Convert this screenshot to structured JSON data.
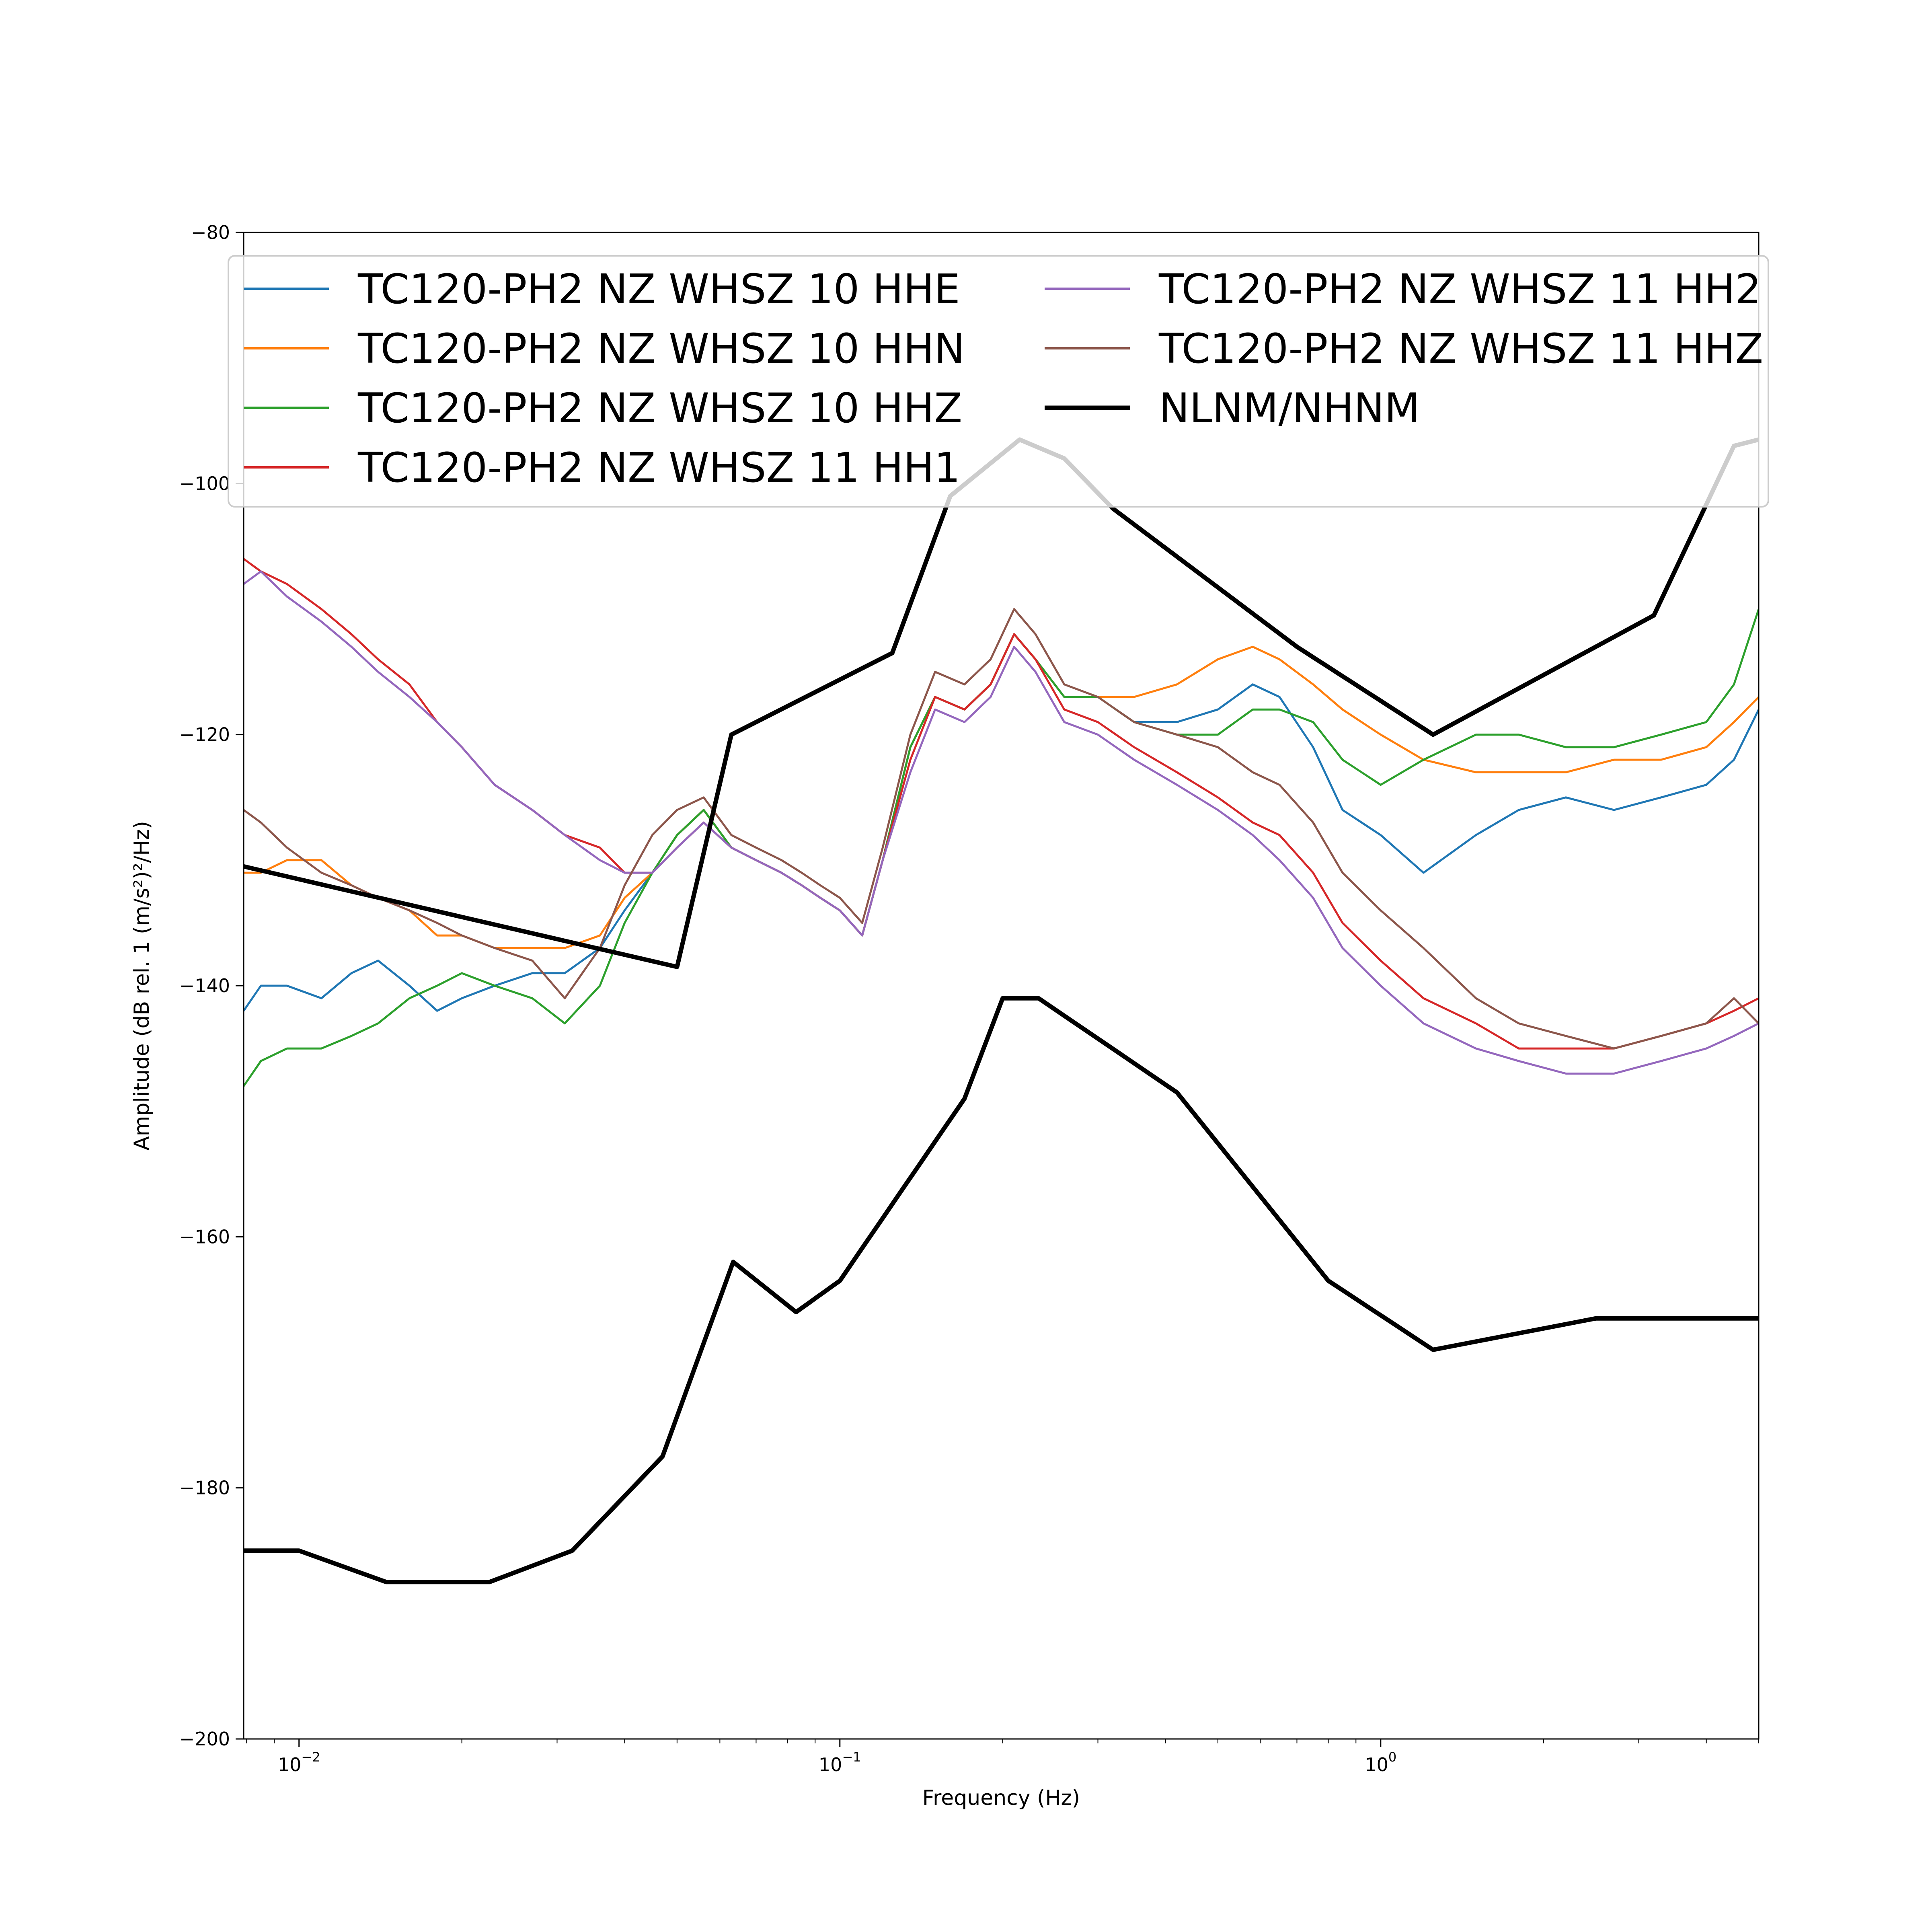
{
  "chart_data": {
    "type": "line",
    "xlabel": "Frequency (Hz)",
    "ylabel": "Amplitude (dB rel. 1 (m/s²)²/Hz)",
    "x_scale": "log",
    "xlim": [
      0.0079,
      5.0
    ],
    "ylim": [
      -200,
      -80
    ],
    "x_ticks": [
      {
        "value": 0.01,
        "base": "10",
        "exp": "−2"
      },
      {
        "value": 0.1,
        "base": "10",
        "exp": "−1"
      },
      {
        "value": 1,
        "base": "10",
        "exp": "0"
      }
    ],
    "y_ticks": [
      {
        "value": -80,
        "label": "−80"
      },
      {
        "value": -100,
        "label": "−100"
      },
      {
        "value": -120,
        "label": "−120"
      },
      {
        "value": -140,
        "label": "−140"
      },
      {
        "value": -160,
        "label": "−160"
      },
      {
        "value": -180,
        "label": "−180"
      },
      {
        "value": -200,
        "label": "−200"
      }
    ],
    "grid": false,
    "legend_position": "top",
    "series": [
      {
        "name": "TC120-PH2 NZ WHSZ 10 HHE",
        "color": "#1f77b4",
        "x": [
          0.0079,
          0.0085,
          0.0095,
          0.011,
          0.0125,
          0.014,
          0.016,
          0.018,
          0.02,
          0.023,
          0.027,
          0.031,
          0.036,
          0.04,
          0.045,
          0.05,
          0.056,
          0.063,
          0.07,
          0.078,
          0.085,
          0.092,
          0.1,
          0.11,
          0.12,
          0.135,
          0.15,
          0.17,
          0.19,
          0.21,
          0.23,
          0.26,
          0.3,
          0.35,
          0.42,
          0.5,
          0.58,
          0.65,
          0.75,
          0.85,
          1.0,
          1.2,
          1.5,
          1.8,
          2.2,
          2.7,
          3.3,
          4.0,
          4.5,
          5.0
        ],
        "y": [
          -142,
          -140,
          -140,
          -141,
          -139,
          -138,
          -140,
          -142,
          -141,
          -140,
          -139,
          -139,
          -137,
          -134,
          -131,
          -128,
          -126,
          -129,
          -130,
          -131,
          -132,
          -133,
          -134,
          -136,
          -130,
          -121,
          -117,
          -118,
          -116,
          -112,
          -114,
          -117,
          -117,
          -119,
          -119,
          -118,
          -116,
          -117,
          -121,
          -126,
          -128,
          -131,
          -128,
          -126,
          -125,
          -126,
          -125,
          -124,
          -122,
          -118
        ]
      },
      {
        "name": "TC120-PH2 NZ WHSZ 10 HHN",
        "color": "#ff7f0e",
        "x": [
          0.0079,
          0.0085,
          0.0095,
          0.011,
          0.0125,
          0.014,
          0.016,
          0.018,
          0.02,
          0.023,
          0.027,
          0.031,
          0.036,
          0.04,
          0.045,
          0.05,
          0.056,
          0.063,
          0.07,
          0.078,
          0.085,
          0.092,
          0.1,
          0.11,
          0.12,
          0.135,
          0.15,
          0.17,
          0.19,
          0.21,
          0.23,
          0.26,
          0.3,
          0.35,
          0.42,
          0.5,
          0.58,
          0.65,
          0.75,
          0.85,
          1.0,
          1.2,
          1.5,
          1.8,
          2.2,
          2.7,
          3.3,
          4.0,
          4.5,
          5.0
        ],
        "y": [
          -131,
          -131,
          -130,
          -130,
          -132,
          -133,
          -134,
          -136,
          -136,
          -137,
          -137,
          -137,
          -136,
          -133,
          -131,
          -128,
          -126,
          -129,
          -130,
          -131,
          -132,
          -133,
          -134,
          -136,
          -130,
          -121,
          -117,
          -118,
          -116,
          -112,
          -114,
          -117,
          -117,
          -117,
          -116,
          -114,
          -113,
          -114,
          -116,
          -118,
          -120,
          -122,
          -123,
          -123,
          -123,
          -122,
          -122,
          -121,
          -119,
          -117
        ]
      },
      {
        "name": "TC120-PH2 NZ WHSZ 10 HHZ",
        "color": "#2ca02c",
        "x": [
          0.0079,
          0.0085,
          0.0095,
          0.011,
          0.0125,
          0.014,
          0.016,
          0.018,
          0.02,
          0.023,
          0.027,
          0.031,
          0.036,
          0.04,
          0.045,
          0.05,
          0.056,
          0.063,
          0.07,
          0.078,
          0.085,
          0.092,
          0.1,
          0.11,
          0.12,
          0.135,
          0.15,
          0.17,
          0.19,
          0.21,
          0.23,
          0.26,
          0.3,
          0.35,
          0.42,
          0.5,
          0.58,
          0.65,
          0.75,
          0.85,
          1.0,
          1.2,
          1.5,
          1.8,
          2.2,
          2.7,
          3.3,
          4.0,
          4.5,
          5.0
        ],
        "y": [
          -148,
          -146,
          -145,
          -145,
          -144,
          -143,
          -141,
          -140,
          -139,
          -140,
          -141,
          -143,
          -140,
          -135,
          -131,
          -128,
          -126,
          -129,
          -130,
          -131,
          -132,
          -133,
          -134,
          -136,
          -130,
          -121,
          -117,
          -118,
          -116,
          -112,
          -114,
          -117,
          -117,
          -119,
          -120,
          -120,
          -118,
          -118,
          -119,
          -122,
          -124,
          -122,
          -120,
          -120,
          -121,
          -121,
          -120,
          -119,
          -116,
          -110
        ]
      },
      {
        "name": "TC120-PH2 NZ WHSZ 11 HH1",
        "color": "#d62728",
        "x": [
          0.0079,
          0.0085,
          0.0095,
          0.011,
          0.0125,
          0.014,
          0.016,
          0.018,
          0.02,
          0.023,
          0.027,
          0.031,
          0.036,
          0.04,
          0.045,
          0.05,
          0.056,
          0.063,
          0.07,
          0.078,
          0.085,
          0.092,
          0.1,
          0.11,
          0.12,
          0.135,
          0.15,
          0.17,
          0.19,
          0.21,
          0.23,
          0.26,
          0.3,
          0.35,
          0.42,
          0.5,
          0.58,
          0.65,
          0.75,
          0.85,
          1.0,
          1.2,
          1.5,
          1.8,
          2.2,
          2.7,
          3.3,
          4.0,
          4.5,
          5.0
        ],
        "y": [
          -106,
          -107,
          -108,
          -110,
          -112,
          -114,
          -116,
          -119,
          -121,
          -124,
          -126,
          -128,
          -129,
          -131,
          -131,
          -129,
          -127,
          -129,
          -130,
          -131,
          -132,
          -133,
          -134,
          -136,
          -130,
          -122,
          -117,
          -118,
          -116,
          -112,
          -114,
          -118,
          -119,
          -121,
          -123,
          -125,
          -127,
          -128,
          -131,
          -135,
          -138,
          -141,
          -143,
          -145,
          -145,
          -145,
          -144,
          -143,
          -142,
          -141
        ]
      },
      {
        "name": "TC120-PH2 NZ WHSZ 11 HH2",
        "color": "#9467bd",
        "x": [
          0.0079,
          0.0085,
          0.0095,
          0.011,
          0.0125,
          0.014,
          0.016,
          0.018,
          0.02,
          0.023,
          0.027,
          0.031,
          0.036,
          0.04,
          0.045,
          0.05,
          0.056,
          0.063,
          0.07,
          0.078,
          0.085,
          0.092,
          0.1,
          0.11,
          0.12,
          0.135,
          0.15,
          0.17,
          0.19,
          0.21,
          0.23,
          0.26,
          0.3,
          0.35,
          0.42,
          0.5,
          0.58,
          0.65,
          0.75,
          0.85,
          1.0,
          1.2,
          1.5,
          1.8,
          2.2,
          2.7,
          3.3,
          4.0,
          4.5,
          5.0
        ],
        "y": [
          -108,
          -107,
          -109,
          -111,
          -113,
          -115,
          -117,
          -119,
          -121,
          -124,
          -126,
          -128,
          -130,
          -131,
          -131,
          -129,
          -127,
          -129,
          -130,
          -131,
          -132,
          -133,
          -134,
          -136,
          -130,
          -123,
          -118,
          -119,
          -117,
          -113,
          -115,
          -119,
          -120,
          -122,
          -124,
          -126,
          -128,
          -130,
          -133,
          -137,
          -140,
          -143,
          -145,
          -146,
          -147,
          -147,
          -146,
          -145,
          -144,
          -143
        ]
      },
      {
        "name": "TC120-PH2 NZ WHSZ 11 HHZ",
        "color": "#8c564b",
        "x": [
          0.0079,
          0.0085,
          0.0095,
          0.011,
          0.0125,
          0.014,
          0.016,
          0.018,
          0.02,
          0.023,
          0.027,
          0.031,
          0.036,
          0.04,
          0.045,
          0.05,
          0.056,
          0.063,
          0.07,
          0.078,
          0.085,
          0.092,
          0.1,
          0.11,
          0.12,
          0.135,
          0.15,
          0.17,
          0.19,
          0.21,
          0.23,
          0.26,
          0.3,
          0.35,
          0.42,
          0.5,
          0.58,
          0.65,
          0.75,
          0.85,
          1.0,
          1.2,
          1.5,
          1.8,
          2.2,
          2.7,
          3.3,
          4.0,
          4.5,
          5.0
        ],
        "y": [
          -126,
          -127,
          -129,
          -131,
          -132,
          -133,
          -134,
          -135,
          -136,
          -137,
          -138,
          -141,
          -137,
          -132,
          -128,
          -126,
          -125,
          -128,
          -129,
          -130,
          -131,
          -132,
          -133,
          -135,
          -129,
          -120,
          -115,
          -116,
          -114,
          -110,
          -112,
          -116,
          -117,
          -119,
          -120,
          -121,
          -123,
          -124,
          -127,
          -131,
          -134,
          -137,
          -141,
          -143,
          -144,
          -145,
          -144,
          -143,
          -141,
          -143
        ]
      },
      {
        "name": "NLNM/NHNM",
        "color": "#000000",
        "x": [
          0.0079,
          0.05,
          0.063,
          0.125,
          0.16,
          0.215,
          0.26,
          0.32,
          0.7,
          1.25,
          3.2,
          4.5,
          5.0
        ],
        "y": [
          -130.5,
          -138.5,
          -120,
          -113.5,
          -101,
          -96.5,
          -98,
          -102,
          -113,
          -120,
          -110.5,
          -97,
          -96.5
        ]
      },
      {
        "name": "",
        "color": "#000000",
        "x": [
          0.0079,
          0.01,
          0.0145,
          0.0225,
          0.032,
          0.047,
          0.0635,
          0.083,
          0.1,
          0.17,
          0.2,
          0.233,
          0.42,
          0.8,
          1.25,
          2.5,
          5.0
        ],
        "y": [
          -185,
          -185,
          -187.5,
          -187.5,
          -185,
          -177.5,
          -162,
          -166,
          -163.5,
          -149,
          -141,
          -141,
          -148.5,
          -163.5,
          -169,
          -166.5,
          -166.5
        ]
      }
    ]
  }
}
